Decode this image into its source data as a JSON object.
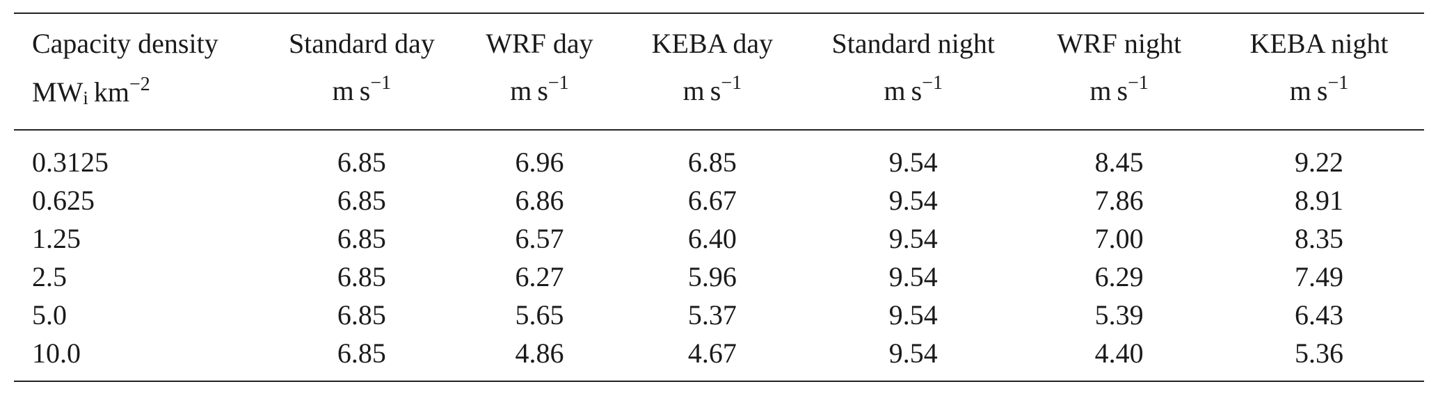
{
  "table": {
    "headers": [
      "Capacity density",
      "Standard day",
      "WRF day",
      "KEBA day",
      "Standard night",
      "WRF night",
      "KEBA night"
    ],
    "units": {
      "first_base": "MW",
      "first_sub": "i",
      "first_tail": "km",
      "first_exp": "−2",
      "others_base": "m",
      "others_unit": "s",
      "others_exp": "−1"
    },
    "rows": [
      [
        "0.3125",
        "6.85",
        "6.96",
        "6.85",
        "9.54",
        "8.45",
        "9.22"
      ],
      [
        "0.625",
        "6.85",
        "6.86",
        "6.67",
        "9.54",
        "7.86",
        "8.91"
      ],
      [
        "1.25",
        "6.85",
        "6.57",
        "6.40",
        "9.54",
        "7.00",
        "8.35"
      ],
      [
        "2.5",
        "6.85",
        "6.27",
        "5.96",
        "9.54",
        "6.29",
        "7.49"
      ],
      [
        "5.0",
        "6.85",
        "5.65",
        "5.37",
        "9.54",
        "5.39",
        "6.43"
      ],
      [
        "10.0",
        "6.85",
        "4.86",
        "4.67",
        "9.54",
        "4.40",
        "5.36"
      ]
    ]
  }
}
